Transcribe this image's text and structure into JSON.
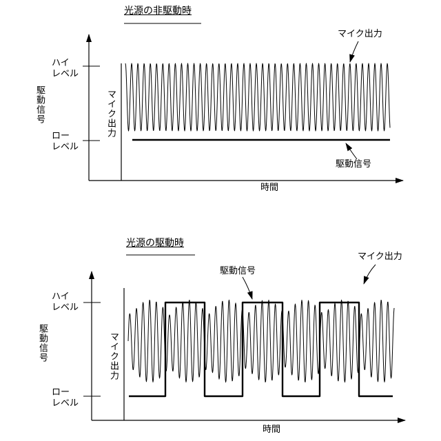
{
  "panel_top": {
    "title": "光源の非駆動時",
    "level_high": [
      "ハイ",
      "レベル"
    ],
    "level_low": [
      "ロー",
      "レベル"
    ],
    "y_label_left": "駆動信号",
    "y_label_right": "マイク出力",
    "x_label": "時間",
    "callout_mic": "マイク出力",
    "callout_drive": "駆動信号"
  },
  "panel_bottom": {
    "title": "光源の駆動時",
    "level_high": [
      "ハイ",
      "レベル"
    ],
    "level_low": [
      "ロー",
      "レベル"
    ],
    "y_label_left": "駆動信号",
    "y_label_right": "マイク出力",
    "x_label": "時間",
    "callout_mic": "マイク出力",
    "callout_drive": "駆動信号"
  },
  "colors": {
    "ink": "#000000",
    "background": "#ffffff"
  }
}
